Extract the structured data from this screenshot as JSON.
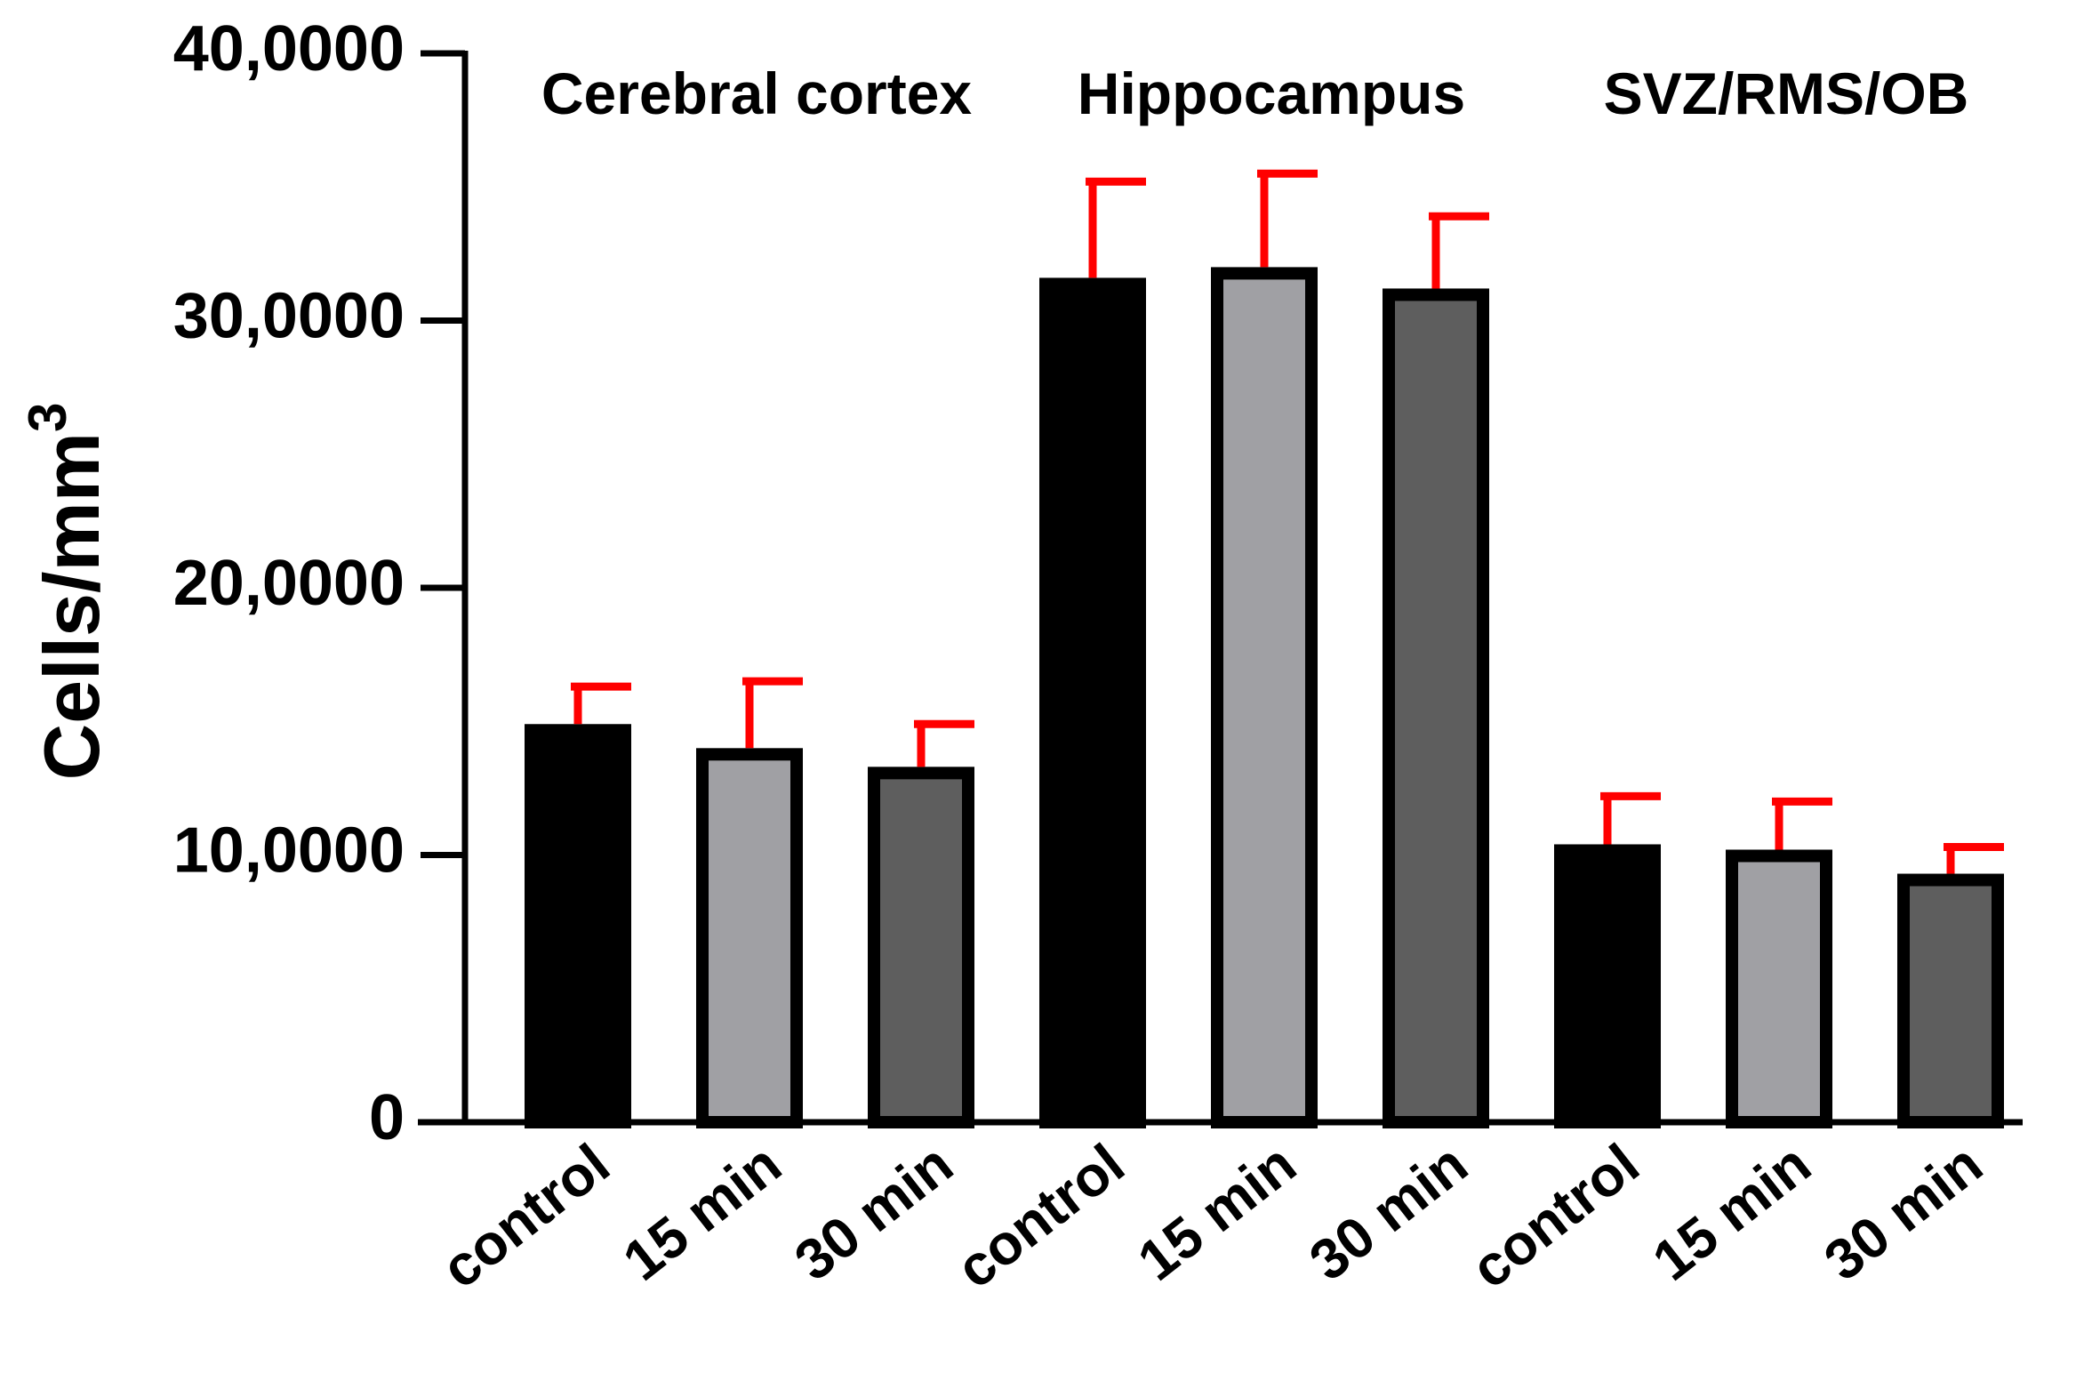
{
  "chart_data": {
    "type": "bar",
    "title": "",
    "xlabel": "",
    "ylabel": "Cells/mm",
    "ylabel_superscript": "3",
    "ylim": [
      0,
      400000
    ],
    "yticks": [
      0,
      100000,
      200000,
      300000,
      400000
    ],
    "ytick_labels": [
      "0",
      "10,0000",
      "20,0000",
      "30,0000",
      "40,0000"
    ],
    "groups": [
      {
        "name": "Cerebral cortex",
        "bars": [
          {
            "label": "control",
            "value": 149000,
            "error": 14000,
            "color": "#000000"
          },
          {
            "label": "15 min",
            "value": 140000,
            "error": 25000,
            "color": "#a0a0a4"
          },
          {
            "label": "30 min",
            "value": 133000,
            "error": 16000,
            "color": "#5e5e5e"
          }
        ]
      },
      {
        "name": "Hippocampus",
        "bars": [
          {
            "label": "control",
            "value": 316000,
            "error": 36000,
            "color": "#000000"
          },
          {
            "label": "15 min",
            "value": 320000,
            "error": 35000,
            "color": "#a0a0a4"
          },
          {
            "label": "30 min",
            "value": 312000,
            "error": 27000,
            "color": "#5e5e5e"
          }
        ]
      },
      {
        "name": "SVZ/RMS/OB",
        "bars": [
          {
            "label": "control",
            "value": 104000,
            "error": 18000,
            "color": "#000000"
          },
          {
            "label": "15 min",
            "value": 102000,
            "error": 18000,
            "color": "#a0a0a4"
          },
          {
            "label": "30 min",
            "value": 93000,
            "error": 10000,
            "color": "#5e5e5e"
          }
        ]
      }
    ],
    "error_bar_color": "#ff0000",
    "bar_outline_color": "#000000",
    "grid": false,
    "legend": "none"
  }
}
